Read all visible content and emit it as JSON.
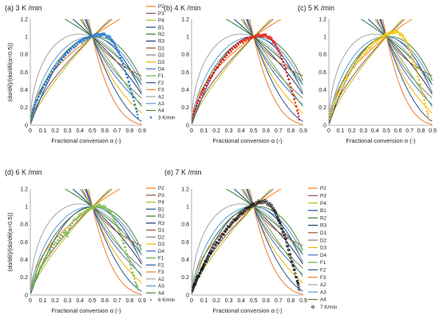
{
  "models": [
    {
      "name": "P2",
      "color": "#ff7f0e"
    },
    {
      "name": "P3",
      "color": "#8c564b"
    },
    {
      "name": "P4",
      "color": "#bcbd22"
    },
    {
      "name": "B1",
      "color": "#1f4e99"
    },
    {
      "name": "R2",
      "color": "#2e7d32"
    },
    {
      "name": "R3",
      "color": "#1f3a6e"
    },
    {
      "name": "D1",
      "color": "#a0522d"
    },
    {
      "name": "D2",
      "color": "#808080"
    },
    {
      "name": "D3",
      "color": "#f2b600"
    },
    {
      "name": "D4",
      "color": "#4472c4"
    },
    {
      "name": "F1",
      "color": "#70ad47"
    },
    {
      "name": "F2",
      "color": "#2f5597"
    },
    {
      "name": "F3",
      "color": "#ed7d31"
    },
    {
      "name": "A2",
      "color": "#a5a5a5"
    },
    {
      "name": "A3",
      "color": "#5b9bd5"
    },
    {
      "name": "A4",
      "color": "#548235"
    }
  ],
  "chart_data": [
    {
      "type": "scatter",
      "title": "(a) 3 K /min",
      "series_name": "3 K/min",
      "marker_color": "#1f77d4",
      "marker_shape": "diamond",
      "legend": "right",
      "xlabel": "Fractional conversion α (-)",
      "ylabel": "(dα/dθ)/(dα/dθ(α=0.5))",
      "xlim": [
        0,
        0.9
      ],
      "ylim": [
        0,
        1.2
      ],
      "xticks": [
        "0",
        "0.1",
        "0.2",
        "0.3",
        "0.4",
        "0.5",
        "0.6",
        "0.7",
        "0.8",
        "0.9"
      ],
      "yticks": [
        "0",
        "0.2",
        "0.4",
        "0.6",
        "0.8",
        "1",
        "1.2"
      ],
      "points": [
        [
          0.01,
          0.12
        ],
        [
          0.03,
          0.2
        ],
        [
          0.05,
          0.27
        ],
        [
          0.08,
          0.36
        ],
        [
          0.1,
          0.42
        ],
        [
          0.13,
          0.5
        ],
        [
          0.16,
          0.57
        ],
        [
          0.2,
          0.65
        ],
        [
          0.24,
          0.72
        ],
        [
          0.28,
          0.79
        ],
        [
          0.32,
          0.85
        ],
        [
          0.36,
          0.9
        ],
        [
          0.4,
          0.94
        ],
        [
          0.44,
          0.97
        ],
        [
          0.48,
          1.0
        ],
        [
          0.52,
          1.02
        ],
        [
          0.56,
          1.03
        ],
        [
          0.6,
          1.02
        ],
        [
          0.64,
          0.99
        ],
        [
          0.67,
          0.94
        ],
        [
          0.7,
          0.86
        ],
        [
          0.73,
          0.76
        ],
        [
          0.76,
          0.64
        ],
        [
          0.79,
          0.5
        ],
        [
          0.82,
          0.35
        ],
        [
          0.85,
          0.2
        ],
        [
          0.87,
          0.08
        ]
      ]
    },
    {
      "type": "scatter",
      "title": "(b) 4 K /min",
      "series_name": "4 K/min",
      "marker_color": "#e41a1c",
      "marker_shape": "diamond",
      "legend": "none",
      "xlabel": "Fractional conversion α (-)",
      "ylabel": "",
      "xlim": [
        0,
        0.9
      ],
      "ylim": [
        0,
        1.2
      ],
      "xticks": [
        "0",
        "0.1",
        "0.2",
        "0.3",
        "0.4",
        "0.5",
        "0.6",
        "0.7",
        "0.8",
        "0.9"
      ],
      "yticks": [
        "0",
        "0.2",
        "0.4",
        "0.6",
        "0.8",
        "1",
        "1.2"
      ],
      "points": [
        [
          0.01,
          0.1
        ],
        [
          0.03,
          0.19
        ],
        [
          0.05,
          0.26
        ],
        [
          0.08,
          0.35
        ],
        [
          0.1,
          0.41
        ],
        [
          0.13,
          0.49
        ],
        [
          0.16,
          0.56
        ],
        [
          0.2,
          0.64
        ],
        [
          0.24,
          0.72
        ],
        [
          0.28,
          0.79
        ],
        [
          0.32,
          0.85
        ],
        [
          0.36,
          0.9
        ],
        [
          0.4,
          0.94
        ],
        [
          0.44,
          0.97
        ],
        [
          0.48,
          0.99
        ],
        [
          0.52,
          1.01
        ],
        [
          0.56,
          1.02
        ],
        [
          0.6,
          1.01
        ],
        [
          0.64,
          0.98
        ],
        [
          0.67,
          0.93
        ],
        [
          0.7,
          0.85
        ],
        [
          0.73,
          0.75
        ],
        [
          0.76,
          0.62
        ],
        [
          0.79,
          0.48
        ],
        [
          0.82,
          0.33
        ],
        [
          0.85,
          0.18
        ],
        [
          0.87,
          0.06
        ]
      ]
    },
    {
      "type": "scatter",
      "title": "(c) 5 K /min",
      "series_name": "5 K/min",
      "marker_color": "#f2c80f",
      "marker_shape": "diamond",
      "legend": "none",
      "xlabel": "Fractional conversion α (-)",
      "ylabel": "",
      "xlim": [
        0,
        0.9
      ],
      "ylim": [
        0,
        1.2
      ],
      "xticks": [
        "0",
        "0.1",
        "0.2",
        "0.3",
        "0.4",
        "0.5",
        "0.6",
        "0.7",
        "0.8",
        "0.9"
      ],
      "yticks": [
        "0",
        "0.2",
        "0.4",
        "0.6",
        "0.8",
        "1",
        "1.2"
      ],
      "points": [
        [
          0.01,
          0.09
        ],
        [
          0.03,
          0.17
        ],
        [
          0.05,
          0.24
        ],
        [
          0.08,
          0.33
        ],
        [
          0.1,
          0.39
        ],
        [
          0.13,
          0.47
        ],
        [
          0.16,
          0.55
        ],
        [
          0.2,
          0.63
        ],
        [
          0.24,
          0.71
        ],
        [
          0.28,
          0.78
        ],
        [
          0.32,
          0.84
        ],
        [
          0.36,
          0.89
        ],
        [
          0.4,
          0.94
        ],
        [
          0.44,
          0.98
        ],
        [
          0.48,
          1.01
        ],
        [
          0.52,
          1.04
        ],
        [
          0.56,
          1.06
        ],
        [
          0.6,
          1.05
        ],
        [
          0.64,
          1.01
        ],
        [
          0.67,
          0.95
        ],
        [
          0.7,
          0.86
        ],
        [
          0.73,
          0.75
        ],
        [
          0.76,
          0.62
        ],
        [
          0.79,
          0.47
        ],
        [
          0.82,
          0.32
        ],
        [
          0.85,
          0.17
        ],
        [
          0.87,
          0.06
        ]
      ]
    },
    {
      "type": "scatter",
      "title": "(d) 6 K /min",
      "series_name": "6 K/min",
      "marker_color": "#7fbf4d",
      "marker_shape": "diamond",
      "legend": "right",
      "xlabel": "Fractional conversion α (-)",
      "ylabel": "(dα/dθ)/(dα/dθ(α=0.5))",
      "xlim": [
        0,
        0.9
      ],
      "ylim": [
        0,
        1.2
      ],
      "xticks": [
        "0",
        "0.1",
        "0.2",
        "0.3",
        "0.4",
        "0.5",
        "0.6",
        "0.7",
        "0.8",
        "0.9"
      ],
      "yticks": [
        "0",
        "0.2",
        "0.4",
        "0.6",
        "0.8",
        "1",
        "1.2"
      ],
      "points": [
        [
          0.01,
          0.08
        ],
        [
          0.03,
          0.15
        ],
        [
          0.05,
          0.22
        ],
        [
          0.08,
          0.3
        ],
        [
          0.1,
          0.36
        ],
        [
          0.13,
          0.44
        ],
        [
          0.16,
          0.51
        ],
        [
          0.2,
          0.58
        ],
        [
          0.24,
          0.65
        ],
        [
          0.28,
          0.72
        ],
        [
          0.3,
          0.68
        ],
        [
          0.32,
          0.79
        ],
        [
          0.36,
          0.85
        ],
        [
          0.4,
          0.9
        ],
        [
          0.44,
          0.94
        ],
        [
          0.48,
          0.98
        ],
        [
          0.52,
          1.0
        ],
        [
          0.56,
          1.01
        ],
        [
          0.6,
          0.99
        ],
        [
          0.64,
          0.95
        ],
        [
          0.67,
          0.88
        ],
        [
          0.7,
          0.79
        ],
        [
          0.73,
          0.68
        ],
        [
          0.76,
          0.55
        ],
        [
          0.79,
          0.41
        ],
        [
          0.82,
          0.27
        ],
        [
          0.85,
          0.14
        ],
        [
          0.87,
          0.05
        ]
      ]
    },
    {
      "type": "scatter",
      "title": "(e) 7 K /min",
      "series_name": "7 K/min",
      "marker_color": "#111111",
      "marker_shape": "circle",
      "legend": "right",
      "xlabel": "Fractional conversion α (-)",
      "ylabel": "",
      "xlim": [
        0,
        0.9
      ],
      "ylim": [
        0,
        1.2
      ],
      "xticks": [
        "0",
        "0.1",
        "0.2",
        "0.3",
        "0.4",
        "0.5",
        "0.6",
        "0.7",
        "0.8",
        "0.9"
      ],
      "yticks": [
        "0",
        "0.2",
        "0.4",
        "0.6",
        "0.8",
        "1",
        "1.2"
      ],
      "points": [
        [
          0.01,
          0.07
        ],
        [
          0.03,
          0.14
        ],
        [
          0.05,
          0.2
        ],
        [
          0.08,
          0.28
        ],
        [
          0.1,
          0.34
        ],
        [
          0.13,
          0.42
        ],
        [
          0.16,
          0.5
        ],
        [
          0.2,
          0.58
        ],
        [
          0.24,
          0.66
        ],
        [
          0.28,
          0.74
        ],
        [
          0.32,
          0.81
        ],
        [
          0.36,
          0.87
        ],
        [
          0.4,
          0.92
        ],
        [
          0.44,
          0.97
        ],
        [
          0.48,
          1.01
        ],
        [
          0.52,
          1.04
        ],
        [
          0.56,
          1.06
        ],
        [
          0.6,
          1.05
        ],
        [
          0.64,
          1.01
        ],
        [
          0.67,
          0.95
        ],
        [
          0.7,
          0.86
        ],
        [
          0.73,
          0.75
        ],
        [
          0.76,
          0.62
        ],
        [
          0.79,
          0.47
        ],
        [
          0.82,
          0.32
        ],
        [
          0.85,
          0.17
        ],
        [
          0.87,
          0.06
        ]
      ]
    }
  ]
}
